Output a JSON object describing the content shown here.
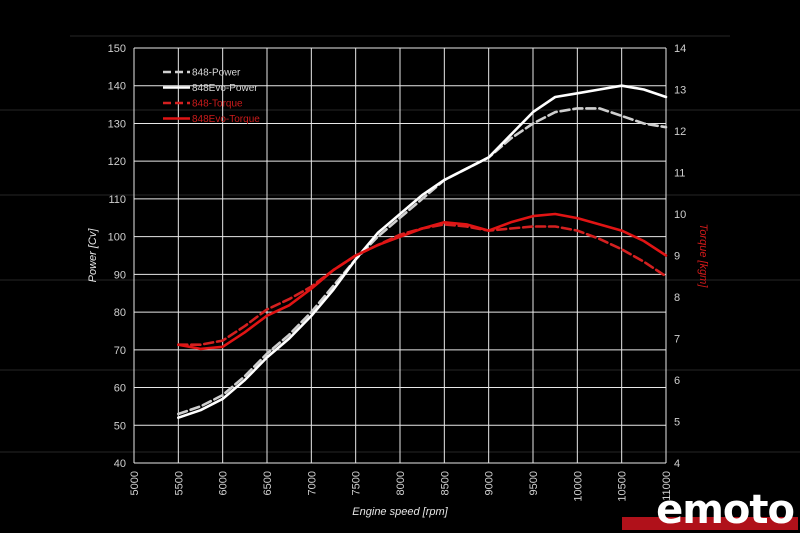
{
  "chart_data": {
    "type": "line",
    "xlabel": "Engine speed [rpm]",
    "ylabel_left": "Power [Cv]",
    "ylabel_right": "Torque [kgm]",
    "xlim": [
      5000,
      11000
    ],
    "ylim_left": [
      40,
      150
    ],
    "ylim_right": [
      4,
      14
    ],
    "x_ticks": [
      5000,
      5500,
      6000,
      6500,
      7000,
      7500,
      8000,
      8500,
      9000,
      9500,
      10000,
      10500,
      11000
    ],
    "y_left_ticks": [
      40,
      50,
      60,
      70,
      80,
      90,
      100,
      110,
      120,
      130,
      140,
      150
    ],
    "y_right_ticks": [
      4,
      5,
      6,
      7,
      8,
      9,
      10,
      11,
      12,
      13,
      14
    ],
    "grid": true,
    "legend_position": "top-left",
    "series": [
      {
        "name": "848-Power",
        "axis": "left",
        "color": "#cfcfcf",
        "dashed": true,
        "x": [
          5500,
          5750,
          6000,
          6250,
          6500,
          6750,
          7000,
          7250,
          7500,
          7750,
          8000,
          8250,
          8500,
          8750,
          9000,
          9250,
          9500,
          9750,
          10000,
          10250,
          10500,
          10750,
          11000
        ],
        "y": [
          53,
          55,
          58,
          63,
          69,
          74,
          80,
          87,
          94,
          100,
          105,
          110,
          115,
          118,
          121,
          126,
          130,
          133,
          134,
          134,
          132,
          130,
          129
        ]
      },
      {
        "name": "848Evo-Power",
        "axis": "left",
        "color": "#ffffff",
        "dashed": false,
        "x": [
          5500,
          5750,
          6000,
          6250,
          6500,
          6750,
          7000,
          7250,
          7500,
          7750,
          8000,
          8250,
          8500,
          8750,
          9000,
          9250,
          9500,
          9750,
          10000,
          10250,
          10500,
          10750,
          11000
        ],
        "y": [
          52,
          54,
          57,
          62,
          68,
          73,
          79,
          86,
          94,
          101,
          106,
          111,
          115,
          118,
          121,
          127,
          133,
          137,
          138,
          139,
          140,
          139,
          137
        ]
      },
      {
        "name": "848-Torque",
        "axis": "right",
        "color": "#d42020",
        "dashed": true,
        "x": [
          5500,
          5750,
          6000,
          6250,
          6500,
          6750,
          7000,
          7250,
          7500,
          7750,
          8000,
          8250,
          8500,
          8750,
          9000,
          9250,
          9500,
          9750,
          10000,
          10250,
          10500,
          10750,
          11000
        ],
        "y": [
          6.85,
          6.85,
          6.95,
          7.3,
          7.7,
          7.95,
          8.25,
          8.65,
          9.0,
          9.25,
          9.5,
          9.65,
          9.75,
          9.7,
          9.6,
          9.65,
          9.7,
          9.7,
          9.6,
          9.4,
          9.15,
          8.85,
          8.5
        ]
      },
      {
        "name": "848Evo-Torque",
        "axis": "right",
        "color": "#e11414",
        "dashed": false,
        "x": [
          5500,
          5750,
          6000,
          6250,
          6500,
          6750,
          7000,
          7250,
          7500,
          7750,
          8000,
          8250,
          8500,
          8750,
          9000,
          9250,
          9500,
          9750,
          10000,
          10250,
          10500,
          10750,
          11000
        ],
        "y": [
          6.85,
          6.75,
          6.8,
          7.15,
          7.55,
          7.8,
          8.2,
          8.65,
          9.0,
          9.25,
          9.45,
          9.65,
          9.8,
          9.75,
          9.6,
          9.8,
          9.95,
          10.0,
          9.9,
          9.75,
          9.6,
          9.35,
          9.0
        ]
      }
    ]
  },
  "watermark": {
    "text": "emoto"
  }
}
